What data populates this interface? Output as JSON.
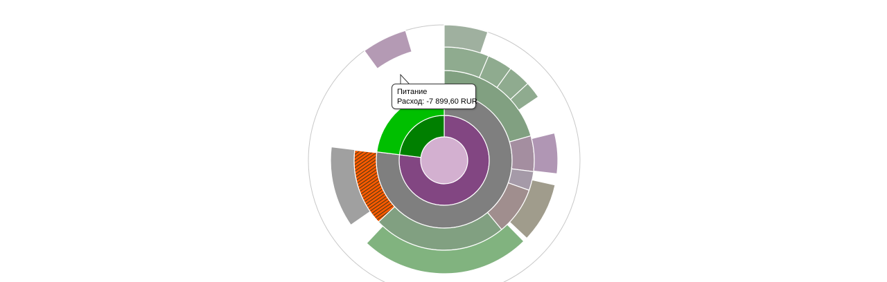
{
  "chart_data": {
    "type": "sunburst",
    "title": "",
    "unit": "RUR",
    "rings": [
      [
        {
          "value": 100,
          "color": "#d3b0d0"
        }
      ],
      [
        {
          "value": 77,
          "color": "#824682"
        },
        {
          "value": 23,
          "color": "#007f00"
        }
      ],
      [
        {
          "value": 77,
          "color": "#7f7f7f"
        },
        {
          "value": 23,
          "color": "#00bf00"
        }
      ],
      [
        {
          "value": 20.6,
          "color": "#81a081"
        },
        {
          "value": 6.4,
          "color": "#a48ea0"
        },
        {
          "value": 3.4,
          "color": "#a59aa8"
        },
        {
          "value": 8.6,
          "color": "#a08e8e"
        },
        {
          "value": 24,
          "color": "#81a081"
        },
        {
          "value": 13.8,
          "color": "#7f7f7f",
          "pattern": "stripes",
          "highlighted": true
        },
        {
          "value": 23.2,
          "gap": true
        }
      ],
      [
        {
          "value": 6.4,
          "color": "#8fab8f"
        },
        {
          "value": 3.6,
          "color": "#8fab8f"
        },
        {
          "value": 3.2,
          "color": "#8fab8f"
        },
        {
          "value": 2.4,
          "color": "#8fab8f"
        },
        {
          "value": 5.6,
          "gap": true
        },
        {
          "value": 5.8,
          "color": "#b096b4"
        },
        {
          "value": 1.6,
          "gap": true
        },
        {
          "value": 8.6,
          "color": "#a09c8c"
        },
        {
          "value": 0.6,
          "gap": true
        },
        {
          "value": 24.4,
          "color": "#81b37f"
        },
        {
          "value": 3.4,
          "gap": true
        },
        {
          "value": 11.6,
          "color": "#a0a0a0"
        },
        {
          "value": 23.2,
          "gap": true
        }
      ],
      [
        {
          "value": 5.2,
          "color": "#9fb09f"
        },
        {
          "value": 84.8,
          "gap": true
        },
        {
          "value": 5.4,
          "color": "#b49ab4"
        },
        {
          "value": 4.6,
          "gap": true
        }
      ]
    ]
  },
  "tooltip": {
    "line1": "Питание",
    "line2": "Расход: -7 899,60 RUR"
  },
  "colors": {
    "highlight_stripe_a": "#ff5a00",
    "highlight_stripe_b": "#5a3a10",
    "outline": "#c8c8c8"
  }
}
